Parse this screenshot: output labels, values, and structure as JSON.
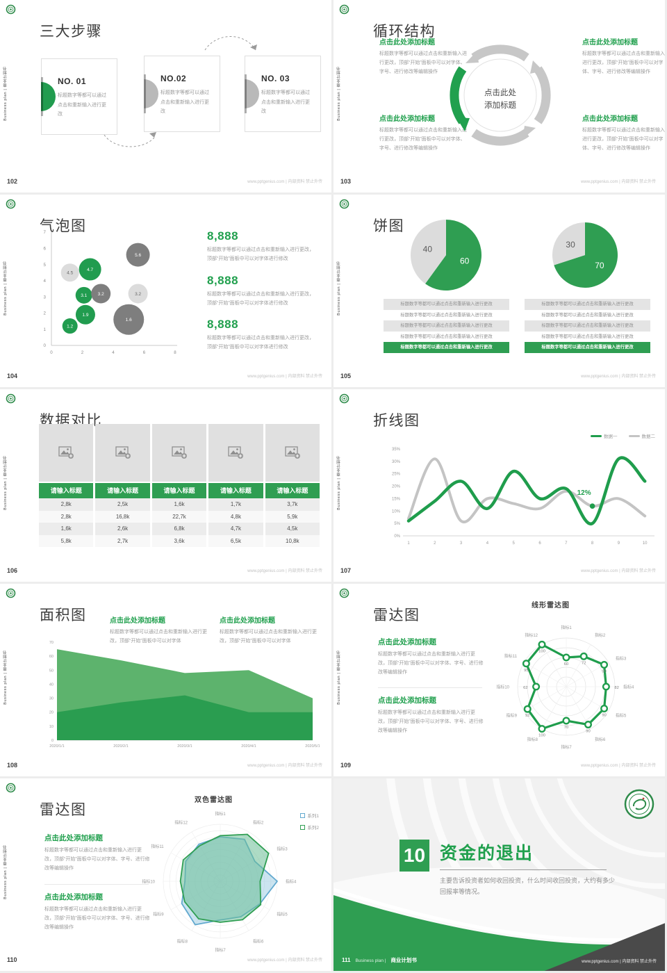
{
  "common": {
    "vertical_label": "Business plan | 商业计划书",
    "footer_right": "www.pptgenius.com | 内部资料 禁止外传",
    "click_title": "点击此处添加标题",
    "body_short": "标题数字等都可以通过点击和重新输入进行更改",
    "body_full": "标题数字等都可以通过点击和重新输入进行更改，顶部“开始”面板中可以对字体、字号、进行修改等编辑操作",
    "body_mid": "标题数字等都可以通过点击和重新输入进行更改，顶部“开始”面板中可以对字体进行修改",
    "body_area": "标题数字等都可以通过点击和重新输入进行更改，顶部“开始”面板中可以对字体",
    "brand_green": "#21a04e"
  },
  "slides": {
    "s102": {
      "page": "102",
      "title": "三大步骤",
      "cards": [
        {
          "no": "NO. 01"
        },
        {
          "no": "NO.02"
        },
        {
          "no": "NO. 03"
        }
      ]
    },
    "s103": {
      "page": "103",
      "title": "循环结构"
    },
    "s104": {
      "page": "104",
      "title": "气泡图",
      "stats": [
        {
          "value": "8,888"
        },
        {
          "value": "8,888"
        },
        {
          "value": "8,888"
        }
      ]
    },
    "s105": {
      "page": "105",
      "title": "饼图"
    },
    "s106": {
      "page": "106",
      "title": "数据对比",
      "columns": [
        {
          "header": "请输入标题",
          "values": [
            "2,8k",
            "2,8k",
            "1,6k",
            "5,8k"
          ]
        },
        {
          "header": "请输入标题",
          "values": [
            "2,5k",
            "16,8k",
            "2,6k",
            "2,7k"
          ]
        },
        {
          "header": "请输入标题",
          "values": [
            "1,6k",
            "22,7k",
            "6,8k",
            "3,6k"
          ]
        },
        {
          "header": "请输入标题",
          "values": [
            "1,7k",
            "4,8k",
            "4,7k",
            "6,5k"
          ]
        },
        {
          "header": "请输入标题",
          "values": [
            "3,7k",
            "5,9k",
            "4,5k",
            "10,8k"
          ]
        }
      ]
    },
    "s107": {
      "page": "107",
      "title": "折线图",
      "legend1": "数据一",
      "legend2": "数据二"
    },
    "s108": {
      "page": "108",
      "title": "面积图"
    },
    "s109": {
      "page": "109",
      "title": "雷达图",
      "chart_title": "线形雷达图"
    },
    "s110": {
      "page": "110",
      "title": "雷达图",
      "chart_title": "双色雷达图",
      "legend1": "系列1",
      "legend2": "系列2"
    },
    "s111": {
      "page": "111",
      "number": "10",
      "title": "资金的退出",
      "body": "主要告诉投资者如何收回投资，什么时间收回投资，大约有多少回报率等情况。",
      "brand_en": "Business plan |",
      "brand_cn": "商业计划书"
    }
  },
  "chart_data": [
    {
      "id": "bubble104",
      "type": "scatter",
      "xlim": [
        0,
        8
      ],
      "xticks": [
        0,
        2,
        4,
        6,
        8
      ],
      "ylim": [
        0,
        7
      ],
      "points": [
        {
          "x": 1.2,
          "y": 4.5,
          "r": 13,
          "c": "light",
          "label": "4.5"
        },
        {
          "x": 2.5,
          "y": 4.7,
          "r": 16,
          "c": "green",
          "label": "4.7"
        },
        {
          "x": 5.6,
          "y": 5.6,
          "r": 17,
          "c": "dark",
          "label": "5.6"
        },
        {
          "x": 2.1,
          "y": 3.1,
          "r": 12,
          "c": "green",
          "label": "3.1"
        },
        {
          "x": 3.2,
          "y": 3.2,
          "r": 14,
          "c": "dark",
          "label": "3.2"
        },
        {
          "x": 5.6,
          "y": 3.2,
          "r": 14,
          "c": "light",
          "label": "3.2"
        },
        {
          "x": 2.2,
          "y": 1.9,
          "r": 14,
          "c": "green",
          "label": "1.9"
        },
        {
          "x": 1.2,
          "y": 1.2,
          "r": 11,
          "c": "green",
          "label": "1.2"
        },
        {
          "x": 5.0,
          "y": 1.6,
          "r": 22,
          "c": "dark",
          "label": "1.6"
        }
      ]
    },
    {
      "id": "pie105a",
      "type": "pie",
      "slices": [
        {
          "label": "60",
          "value": 60,
          "color": "#2f9e52",
          "text": "#ffffff"
        },
        {
          "label": "40",
          "value": 40,
          "color": "#dcdcdc",
          "text": "#5a5a5a"
        }
      ]
    },
    {
      "id": "pie105b",
      "type": "pie",
      "slices": [
        {
          "label": "70",
          "value": 70,
          "color": "#2f9e52",
          "text": "#ffffff"
        },
        {
          "label": "30",
          "value": 30,
          "color": "#dcdcdc",
          "text": "#5a5a5a"
        }
      ]
    },
    {
      "id": "line107",
      "type": "line",
      "x": [
        1,
        2,
        3,
        4,
        5,
        6,
        7,
        8,
        9,
        10
      ],
      "ylim": [
        0,
        35
      ],
      "ystep": 5,
      "series": [
        {
          "name": "数据二",
          "color": "#c4c4c4",
          "width": 4,
          "values": [
            7,
            31,
            6,
            15,
            13,
            11,
            18,
            12,
            15,
            8
          ]
        },
        {
          "name": "数据一",
          "color": "#1f9d4c",
          "width": 4.5,
          "values": [
            6,
            14,
            22,
            11,
            26,
            15,
            19,
            5,
            31,
            22
          ]
        }
      ],
      "annotation": {
        "x": 8,
        "y": 12,
        "label": "12%"
      }
    },
    {
      "id": "area108",
      "type": "area",
      "categories": [
        "2020/1/1",
        "2020/2/1",
        "2020/3/1",
        "2020/4/1",
        "2020/5/1"
      ],
      "ylim": [
        0,
        70
      ],
      "ystep": 10,
      "series": [
        {
          "name": "浅绿面积",
          "color": "#5db36d",
          "values": [
            65,
            57,
            48,
            50,
            30
          ]
        },
        {
          "name": "深绿面积",
          "color": "#2a9d50",
          "values": [
            20,
            27,
            32,
            20,
            20
          ]
        }
      ]
    },
    {
      "id": "radar109",
      "type": "radar-line",
      "max": 100,
      "rings": 5,
      "color": "#1f9d4c",
      "labels": [
        "指标1",
        "指标2",
        "指标3",
        "指标4",
        "指标5",
        "指标6",
        "指标7",
        "指标8",
        "指标9",
        "指标10",
        "指标11",
        "指标12"
      ],
      "values": [
        60,
        72,
        90,
        82,
        90,
        90,
        70,
        100,
        92,
        62,
        95,
        100
      ]
    },
    {
      "id": "radar110",
      "type": "radar-dual",
      "max": 100,
      "rings": 9,
      "labels": [
        "指标1",
        "指标2",
        "指标3",
        "指标4",
        "指标5",
        "指标6",
        "指标7",
        "指标8",
        "指标9",
        "指标10",
        "指标11",
        "指标12"
      ],
      "series": [
        {
          "name": "系列1",
          "stroke": "#62a9cf",
          "fill": "rgba(140,196,222,0.45)",
          "values": [
            78,
            85,
            70,
            100,
            80,
            72,
            68,
            88,
            78,
            62,
            70,
            75
          ]
        },
        {
          "name": "系列2",
          "stroke": "#2f9e52",
          "fill": "rgba(105,190,150,0.55)",
          "values": [
            80,
            95,
            98,
            70,
            82,
            78,
            72,
            76,
            72,
            70,
            75,
            72
          ]
        }
      ]
    }
  ]
}
